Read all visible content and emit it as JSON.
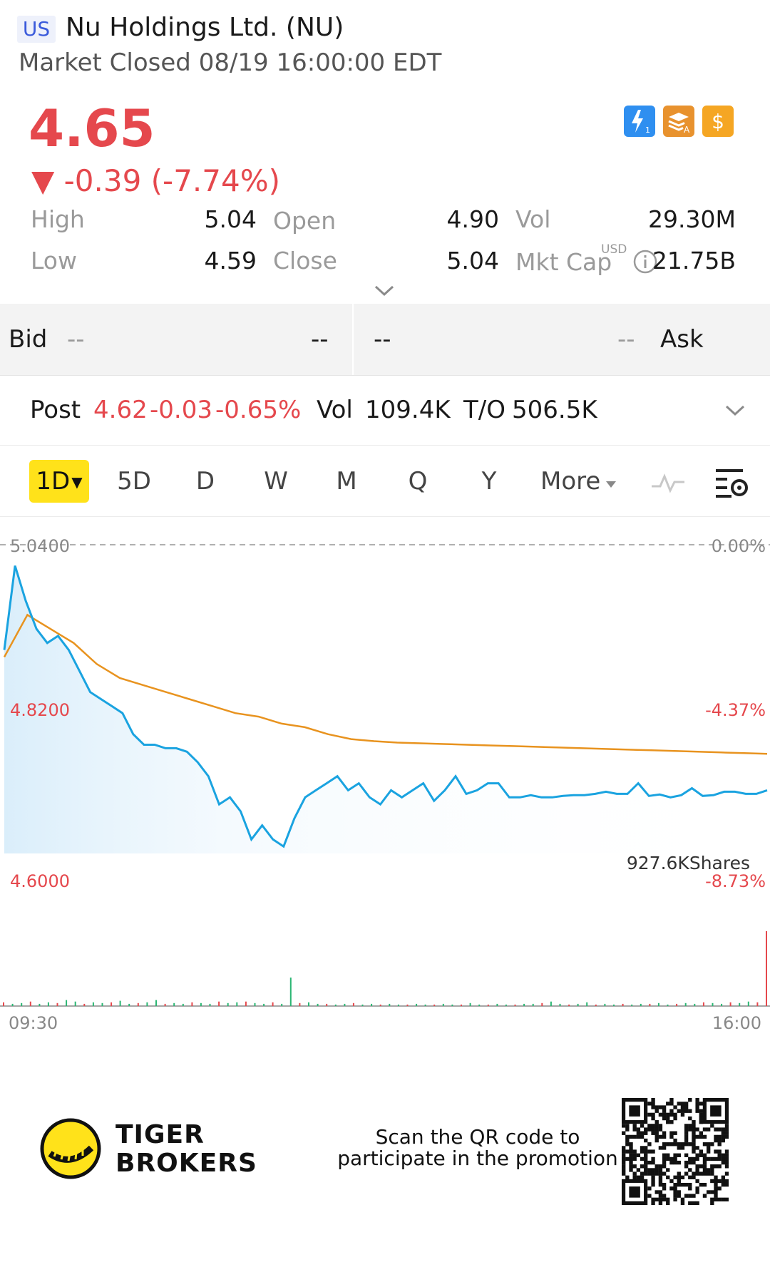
{
  "header": {
    "region": "US",
    "title": "Nu Holdings Ltd. (NU)",
    "status": "Market Closed 08/19 16:00:00 EDT"
  },
  "quote": {
    "price": "4.65",
    "change": "▼ -0.39 (-7.74%)",
    "icons": [
      "lightning-level1-icon",
      "layers-a-icon",
      "dollar-icon"
    ],
    "stats": {
      "high_label": "High",
      "high": "5.04",
      "low_label": "Low",
      "low": "4.59",
      "open_label": "Open",
      "open": "4.90",
      "close_label": "Close",
      "close": "5.04",
      "vol_label": "Vol",
      "vol": "29.30M",
      "mktcap_label": "Mkt Cap",
      "mktcap_currency": "USD",
      "mktcap": "21.75B"
    }
  },
  "bidask": {
    "bid_label": "Bid",
    "bid_price": "--",
    "bid_size": "--",
    "ask_size": "--",
    "ask_price": "--",
    "ask_label": "Ask"
  },
  "post": {
    "label": "Post",
    "price": "4.62",
    "change": "-0.03",
    "pct": "-0.65%",
    "vol_label": "Vol",
    "vol": "109.4K",
    "to_label": "T/O",
    "to": "506.5K"
  },
  "tabs": {
    "active": "1D",
    "items": [
      "5D",
      "D",
      "W",
      "M",
      "Q",
      "Y"
    ],
    "more": "More"
  },
  "chart_data": {
    "type": "line",
    "y_left_ticks": [
      "5.0400",
      "4.8200",
      "4.6000"
    ],
    "y_right_ticks": [
      "0.00%",
      "-4.37%",
      "-8.73%"
    ],
    "x_ticks": [
      "09:30",
      "16:00"
    ],
    "volume_label": "927.6KShares",
    "ylim": [
      4.6,
      5.04
    ],
    "series": [
      {
        "color": "#1aa3e0",
        "values": [
          4.89,
          5.01,
          4.96,
          4.92,
          4.9,
          4.91,
          4.89,
          4.86,
          4.83,
          4.82,
          4.81,
          4.8,
          4.77,
          4.755,
          4.755,
          4.75,
          4.75,
          4.745,
          4.73,
          4.71,
          4.67,
          4.68,
          4.66,
          4.62,
          4.64,
          4.62,
          4.61,
          4.65,
          4.68,
          4.69,
          4.7,
          4.71,
          4.69,
          4.7,
          4.68,
          4.67,
          4.69,
          4.68,
          4.69,
          4.7,
          4.675,
          4.69,
          4.71,
          4.685,
          4.69,
          4.7,
          4.7,
          4.68,
          4.68,
          4.683,
          4.68,
          4.68,
          4.682,
          4.683,
          4.683,
          4.685,
          4.688,
          4.685,
          4.685,
          4.7,
          4.682,
          4.684,
          4.68,
          4.683,
          4.693,
          4.682,
          4.683,
          4.688,
          4.688,
          4.685,
          4.685,
          4.69
        ]
      },
      {
        "color": "#e8931f",
        "values": [
          4.88,
          4.94,
          4.92,
          4.9,
          4.87,
          4.85,
          4.84,
          4.83,
          4.82,
          4.81,
          4.8,
          4.795,
          4.785,
          4.78,
          4.77,
          4.763,
          4.76,
          4.758,
          4.757,
          4.756,
          4.755,
          4.754,
          4.753,
          4.752,
          4.751,
          4.75,
          4.749,
          4.748,
          4.747,
          4.746,
          4.745,
          4.744,
          4.743,
          4.742
        ]
      }
    ],
    "volume": [
      0.05,
      0.03,
      0.04,
      0.06,
      0.03,
      0.05,
      0.04,
      0.08,
      0.06,
      0.03,
      0.05,
      0.04,
      0.05,
      0.07,
      0.03,
      0.04,
      0.05,
      0.08,
      0.03,
      0.04,
      0.03,
      0.05,
      0.04,
      0.03,
      0.06,
      0.04,
      0.05,
      0.06,
      0.04,
      0.03,
      0.05,
      0.03,
      0.38,
      0.04,
      0.05,
      0.03,
      0.03,
      0.02,
      0.03,
      0.04,
      0.02,
      0.03,
      0.02,
      0.03,
      0.02,
      0.02,
      0.03,
      0.02,
      0.02,
      0.03,
      0.02,
      0.02,
      0.04,
      0.02,
      0.02,
      0.03,
      0.02,
      0.02,
      0.03,
      0.03,
      0.04,
      0.06,
      0.03,
      0.02,
      0.03,
      0.05,
      0.02,
      0.03,
      0.02,
      0.03,
      0.02,
      0.03,
      0.03,
      0.04,
      0.02,
      0.03,
      0.04,
      0.03,
      0.05,
      0.04,
      0.03,
      0.05,
      0.04,
      0.06,
      0.05,
      1.0
    ]
  },
  "footer": {
    "brand_line1": "TIGER",
    "brand_line2": "BROKERS",
    "promo_line1": "Scan the QR code to",
    "promo_line2": "participate in the promotion"
  },
  "colors": {
    "up": "#e5484d",
    "price_line": "#1aa3e0",
    "avg_line": "#e8931f",
    "tab_active": "#ffe21a"
  }
}
